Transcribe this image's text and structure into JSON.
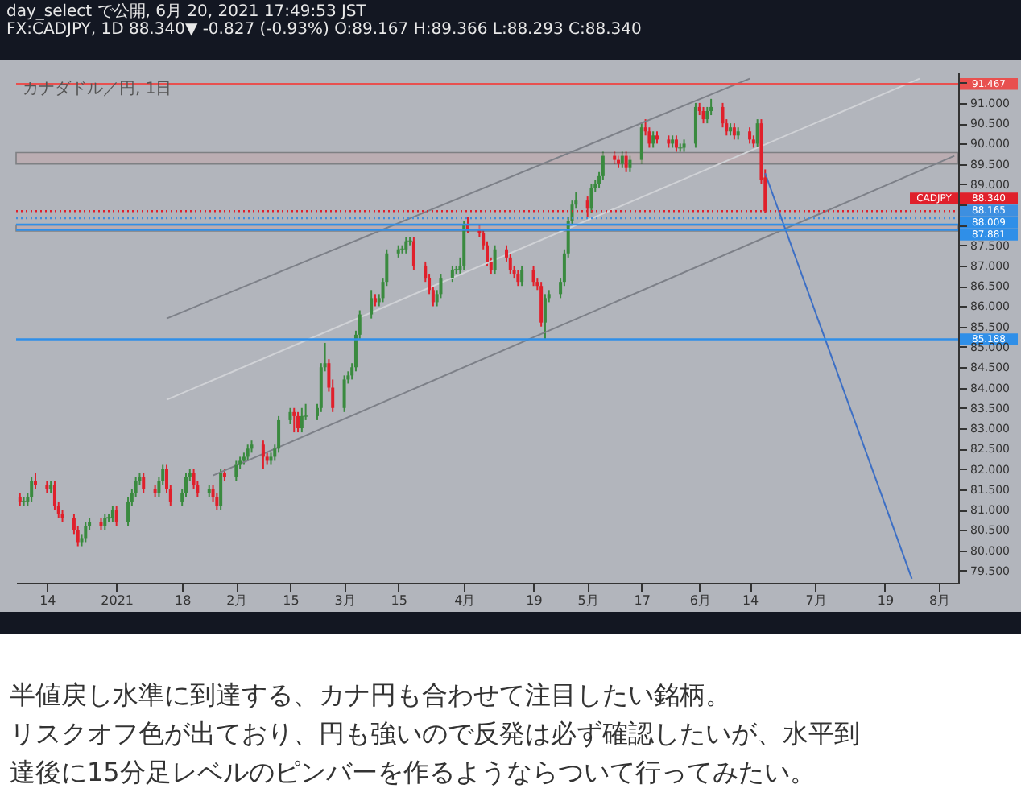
{
  "chart_data": {
    "type": "candlestick",
    "title": "カナダドル／円, 1日",
    "annotations": [
      "day_select で公開, 6月 20, 2021 17:49:53 JST",
      "FX:CADJPY, 1D 88.340▼ -0.827 (-0.93%) O:89.167 H:89.366 L:88.293 C:88.340",
      "半値戻し水準に到達する、カナ円も合わせて注目したい銘柄。",
      "リスクオフ色が出ており、円も強いので反発は必ず確認したいが、水平到",
      "達後に15分足レベルのピンバーを作るようならついて行ってみたい。",
      "CADJPY"
    ],
    "x": [
      "2020-12-07",
      "2020-12-08",
      "2020-12-09",
      "2020-12-10",
      "2020-12-11",
      "2020-12-14",
      "2020-12-15",
      "2020-12-16",
      "2020-12-17",
      "2020-12-18",
      "2020-12-21",
      "2020-12-22",
      "2020-12-23",
      "2020-12-24",
      "2020-12-25",
      "2020-12-28",
      "2020-12-29",
      "2020-12-30",
      "2020-12-31",
      "2021-01-01",
      "2021-01-04",
      "2021-01-05",
      "2021-01-06",
      "2021-01-07",
      "2021-01-08",
      "2021-01-11",
      "2021-01-12",
      "2021-01-13",
      "2021-01-14",
      "2021-01-15",
      "2021-01-18",
      "2021-01-19",
      "2021-01-20",
      "2021-01-21",
      "2021-01-22",
      "2021-01-25",
      "2021-01-26",
      "2021-01-27",
      "2021-01-28",
      "2021-01-29",
      "2021-02-01",
      "2021-02-02",
      "2021-02-03",
      "2021-02-04",
      "2021-02-05",
      "2021-02-08",
      "2021-02-09",
      "2021-02-10",
      "2021-02-11",
      "2021-02-12",
      "2021-02-15",
      "2021-02-16",
      "2021-02-17",
      "2021-02-18",
      "2021-02-19",
      "2021-02-22",
      "2021-02-23",
      "2021-02-24",
      "2021-02-25",
      "2021-02-26",
      "2021-03-01",
      "2021-03-02",
      "2021-03-03",
      "2021-03-04",
      "2021-03-05",
      "2021-03-08",
      "2021-03-09",
      "2021-03-10",
      "2021-03-11",
      "2021-03-12",
      "2021-03-15",
      "2021-03-16",
      "2021-03-17",
      "2021-03-18",
      "2021-03-19",
      "2021-03-22",
      "2021-03-23",
      "2021-03-24",
      "2021-03-25",
      "2021-03-26",
      "2021-03-29",
      "2021-03-30",
      "2021-03-31",
      "2021-04-01",
      "2021-04-02",
      "2021-04-05",
      "2021-04-06",
      "2021-04-07",
      "2021-04-08",
      "2021-04-09",
      "2021-04-12",
      "2021-04-13",
      "2021-04-14",
      "2021-04-15",
      "2021-04-16",
      "2021-04-19",
      "2021-04-20",
      "2021-04-21",
      "2021-04-22",
      "2021-04-23",
      "2021-04-26",
      "2021-04-27",
      "2021-04-28",
      "2021-04-29",
      "2021-04-30",
      "2021-05-03",
      "2021-05-04",
      "2021-05-05",
      "2021-05-06",
      "2021-05-07",
      "2021-05-10",
      "2021-05-11",
      "2021-05-12",
      "2021-05-13",
      "2021-05-14",
      "2021-05-17",
      "2021-05-18",
      "2021-05-19",
      "2021-05-20",
      "2021-05-21",
      "2021-05-24",
      "2021-05-25",
      "2021-05-26",
      "2021-05-27",
      "2021-05-28",
      "2021-05-31",
      "2021-06-01",
      "2021-06-02",
      "2021-06-03",
      "2021-06-04",
      "2021-06-07",
      "2021-06-08",
      "2021-06-09",
      "2021-06-10",
      "2021-06-11",
      "2021-06-14",
      "2021-06-15",
      "2021-06-16",
      "2021-06-17",
      "2021-06-18"
    ],
    "ohlc": [
      [
        81.3,
        81.4,
        81.1,
        81.2
      ],
      [
        81.2,
        81.3,
        81.1,
        81.2
      ],
      [
        81.2,
        81.4,
        81.1,
        81.3
      ],
      [
        81.3,
        81.8,
        81.2,
        81.7
      ],
      [
        81.7,
        81.9,
        81.5,
        81.6
      ],
      [
        81.6,
        81.7,
        81.4,
        81.5
      ],
      [
        81.5,
        81.7,
        81.4,
        81.6
      ],
      [
        81.6,
        81.7,
        81.0,
        81.1
      ],
      [
        81.1,
        81.2,
        80.8,
        80.9
      ],
      [
        80.9,
        81.0,
        80.7,
        80.8
      ],
      [
        80.8,
        80.9,
        80.4,
        80.5
      ],
      [
        80.5,
        80.6,
        80.1,
        80.2
      ],
      [
        80.2,
        80.4,
        80.1,
        80.3
      ],
      [
        80.3,
        80.7,
        80.2,
        80.6
      ],
      [
        80.6,
        80.8,
        80.5,
        80.7
      ],
      [
        80.7,
        80.8,
        80.5,
        80.6
      ],
      [
        80.6,
        80.9,
        80.5,
        80.8
      ],
      [
        80.8,
        80.9,
        80.7,
        80.8
      ],
      [
        80.8,
        81.1,
        80.7,
        81.0
      ],
      [
        81.0,
        81.1,
        80.6,
        80.7
      ],
      [
        80.7,
        81.3,
        80.6,
        81.2
      ],
      [
        81.2,
        81.5,
        81.1,
        81.4
      ],
      [
        81.4,
        81.8,
        81.3,
        81.7
      ],
      [
        81.7,
        81.9,
        81.6,
        81.8
      ],
      [
        81.8,
        81.9,
        81.4,
        81.5
      ],
      [
        81.5,
        81.6,
        81.3,
        81.4
      ],
      [
        81.4,
        81.8,
        81.3,
        81.7
      ],
      [
        81.7,
        82.1,
        81.6,
        82.0
      ],
      [
        82.0,
        82.1,
        81.4,
        81.5
      ],
      [
        81.5,
        81.6,
        81.1,
        81.2
      ],
      [
        81.2,
        81.5,
        81.1,
        81.4
      ],
      [
        81.4,
        81.9,
        81.3,
        81.8
      ],
      [
        81.8,
        82.0,
        81.7,
        81.9
      ],
      [
        81.9,
        82.0,
        81.5,
        81.6
      ],
      [
        81.6,
        81.7,
        81.3,
        81.4
      ],
      [
        81.4,
        81.6,
        81.3,
        81.5
      ],
      [
        81.5,
        81.6,
        81.2,
        81.3
      ],
      [
        81.3,
        81.4,
        81.0,
        81.1
      ],
      [
        81.1,
        82.0,
        81.0,
        81.9
      ],
      [
        81.9,
        82.0,
        81.7,
        81.8
      ],
      [
        81.8,
        82.2,
        81.7,
        82.1
      ],
      [
        82.1,
        82.3,
        82.0,
        82.2
      ],
      [
        82.2,
        82.4,
        82.1,
        82.3
      ],
      [
        82.3,
        82.6,
        82.2,
        82.5
      ],
      [
        82.5,
        82.7,
        82.4,
        82.6
      ],
      [
        82.6,
        82.7,
        82.0,
        82.3
      ],
      [
        82.3,
        82.4,
        82.1,
        82.2
      ],
      [
        82.2,
        82.4,
        82.1,
        82.3
      ],
      [
        82.3,
        82.6,
        82.2,
        82.5
      ],
      [
        82.5,
        83.3,
        82.4,
        83.2
      ],
      [
        83.2,
        83.5,
        83.1,
        83.4
      ],
      [
        83.4,
        83.5,
        82.9,
        83.3
      ],
      [
        83.3,
        83.4,
        82.9,
        83.0
      ],
      [
        83.0,
        83.5,
        82.9,
        83.3
      ],
      [
        83.3,
        83.6,
        83.2,
        83.3
      ],
      [
        83.3,
        83.6,
        83.2,
        83.5
      ],
      [
        83.5,
        84.6,
        83.4,
        84.5
      ],
      [
        84.5,
        85.1,
        84.4,
        84.6
      ],
      [
        84.6,
        84.7,
        83.9,
        84.0
      ],
      [
        84.0,
        84.2,
        83.4,
        83.5
      ],
      [
        83.5,
        84.3,
        83.4,
        84.2
      ],
      [
        84.2,
        84.4,
        84.1,
        84.3
      ],
      [
        84.3,
        84.6,
        84.2,
        84.5
      ],
      [
        84.5,
        85.4,
        84.4,
        85.3
      ],
      [
        85.3,
        85.9,
        85.2,
        85.8
      ],
      [
        85.8,
        86.4,
        85.7,
        86.2
      ],
      [
        86.2,
        86.3,
        86.0,
        86.1
      ],
      [
        86.1,
        86.3,
        86.0,
        86.2
      ],
      [
        86.2,
        86.7,
        86.1,
        86.6
      ],
      [
        86.6,
        87.4,
        86.5,
        87.3
      ],
      [
        87.3,
        87.5,
        87.2,
        87.4
      ],
      [
        87.4,
        87.5,
        87.3,
        87.4
      ],
      [
        87.4,
        87.7,
        87.3,
        87.6
      ],
      [
        87.6,
        87.7,
        87.5,
        87.6
      ],
      [
        87.6,
        87.7,
        86.9,
        87.0
      ],
      [
        87.0,
        87.1,
        86.6,
        86.7
      ],
      [
        86.7,
        86.8,
        86.3,
        86.4
      ],
      [
        86.4,
        86.5,
        86.0,
        86.1
      ],
      [
        86.1,
        86.4,
        86.0,
        86.3
      ],
      [
        86.3,
        86.8,
        86.2,
        86.7
      ],
      [
        86.7,
        87.0,
        86.6,
        86.9
      ],
      [
        86.9,
        87.0,
        86.8,
        86.9
      ],
      [
        86.9,
        87.2,
        86.8,
        87.0
      ],
      [
        87.0,
        88.1,
        86.9,
        88.0
      ],
      [
        88.0,
        88.2,
        87.8,
        87.9
      ],
      [
        87.9,
        88.0,
        87.7,
        87.8
      ],
      [
        87.8,
        87.9,
        87.4,
        87.5
      ],
      [
        87.5,
        87.6,
        87.0,
        87.1
      ],
      [
        87.1,
        87.2,
        86.8,
        86.9
      ],
      [
        86.9,
        87.5,
        86.8,
        87.4
      ],
      [
        87.4,
        87.5,
        87.1,
        87.2
      ],
      [
        87.2,
        87.3,
        86.8,
        86.9
      ],
      [
        86.9,
        87.0,
        86.7,
        86.8
      ],
      [
        86.8,
        86.9,
        86.5,
        86.6
      ],
      [
        86.6,
        87.0,
        86.5,
        86.9
      ],
      [
        86.9,
        87.0,
        86.5,
        86.6
      ],
      [
        86.6,
        86.7,
        86.4,
        86.5
      ],
      [
        86.5,
        86.6,
        85.5,
        85.6
      ],
      [
        85.6,
        86.3,
        85.2,
        86.2
      ],
      [
        86.2,
        86.4,
        86.1,
        86.3
      ],
      [
        86.3,
        86.7,
        86.2,
        86.6
      ],
      [
        86.6,
        87.4,
        86.5,
        87.3
      ],
      [
        87.3,
        88.2,
        87.2,
        88.1
      ],
      [
        88.1,
        88.6,
        88.0,
        88.5
      ],
      [
        88.5,
        88.8,
        88.4,
        88.6
      ],
      [
        88.6,
        88.7,
        88.2,
        88.4
      ],
      [
        88.4,
        89.0,
        88.3,
        88.9
      ],
      [
        88.9,
        89.1,
        88.8,
        89.0
      ],
      [
        89.0,
        89.3,
        88.9,
        89.2
      ],
      [
        89.2,
        89.8,
        89.1,
        89.7
      ],
      [
        89.7,
        89.8,
        89.5,
        89.6
      ],
      [
        89.6,
        89.7,
        89.4,
        89.5
      ],
      [
        89.5,
        89.8,
        89.4,
        89.7
      ],
      [
        89.7,
        89.8,
        89.3,
        89.4
      ],
      [
        89.4,
        89.7,
        89.3,
        89.6
      ],
      [
        89.6,
        90.5,
        89.5,
        90.4
      ],
      [
        90.4,
        90.6,
        90.2,
        90.3
      ],
      [
        90.3,
        90.4,
        89.9,
        90.0
      ],
      [
        90.0,
        90.3,
        89.9,
        90.2
      ],
      [
        90.2,
        90.3,
        90.0,
        90.1
      ],
      [
        90.1,
        90.2,
        89.9,
        90.0
      ],
      [
        90.0,
        90.2,
        89.9,
        90.1
      ],
      [
        90.1,
        90.2,
        89.8,
        89.9
      ],
      [
        89.9,
        90.0,
        89.8,
        89.9
      ],
      [
        89.9,
        90.1,
        89.8,
        90.0
      ],
      [
        90.0,
        91.0,
        89.9,
        90.9
      ],
      [
        90.9,
        91.0,
        90.7,
        90.8
      ],
      [
        90.8,
        90.9,
        90.5,
        90.6
      ],
      [
        90.6,
        90.9,
        90.5,
        90.8
      ],
      [
        90.8,
        91.1,
        90.7,
        90.9
      ],
      [
        90.9,
        91.0,
        90.4,
        90.5
      ],
      [
        90.5,
        90.6,
        90.2,
        90.3
      ],
      [
        90.3,
        90.5,
        90.2,
        90.4
      ],
      [
        90.4,
        90.5,
        90.1,
        90.2
      ],
      [
        90.2,
        90.4,
        90.1,
        90.3
      ],
      [
        90.3,
        90.4,
        90.0,
        90.1
      ],
      [
        90.1,
        90.2,
        89.9,
        90.0
      ],
      [
        90.0,
        90.6,
        89.9,
        90.5
      ],
      [
        90.5,
        90.6,
        89.0,
        89.1
      ],
      [
        89.167,
        89.366,
        88.293,
        88.34
      ]
    ],
    "series": [
      {
        "type": "line",
        "x": [
          "2021-01-14",
          "2021-06-14"
        ],
        "values": [
          85.7,
          91.6
        ],
        "color": "#7d8088"
      },
      {
        "type": "line",
        "x": [
          "2021-01-14",
          "2021-07-28"
        ],
        "values": [
          83.7,
          91.6
        ],
        "color": "#d0d2d6"
      },
      {
        "type": "line",
        "x": [
          "2021-01-26",
          "2021-08-06"
        ],
        "values": [
          81.84,
          89.7
        ],
        "color": "#7d8088"
      },
      {
        "type": "line",
        "x": [
          "2021-06-18",
          "2021-07-26"
        ],
        "values": [
          89.27,
          79.3
        ],
        "color": "#3d6fc4"
      }
    ],
    "xlim": [
      "2020-12-06",
      "2021-08-07"
    ],
    "xticks": [
      {
        "value": "2020-12-14",
        "label": "14"
      },
      {
        "value": "2021-01-01",
        "label": "2021"
      },
      {
        "value": "2021-01-18",
        "label": "18"
      },
      {
        "value": "2021-02-01",
        "label": "2月"
      },
      {
        "value": "2021-02-15",
        "label": "15"
      },
      {
        "value": "2021-03-01",
        "label": "3月"
      },
      {
        "value": "2021-03-15",
        "label": "15"
      },
      {
        "value": "2021-04-01",
        "label": "4月"
      },
      {
        "value": "2021-04-19",
        "label": "19"
      },
      {
        "value": "2021-05-03",
        "label": "5月"
      },
      {
        "value": "2021-05-17",
        "label": "17"
      },
      {
        "value": "2021-06-01",
        "label": "6月"
      },
      {
        "value": "2021-06-14",
        "label": "14"
      },
      {
        "value": "2021-07-01",
        "label": "7月"
      },
      {
        "value": "2021-07-19",
        "label": "19"
      },
      {
        "value": "2021-08-02",
        "label": "8月"
      }
    ],
    "ylim": [
      79.2,
      91.75
    ],
    "yticks": [
      {
        "value": 79.5,
        "label": "79.500"
      },
      {
        "value": 80,
        "label": "80.000"
      },
      {
        "value": 80.5,
        "label": "80.500"
      },
      {
        "value": 81,
        "label": "81.000"
      },
      {
        "value": 81.5,
        "label": "81.500"
      },
      {
        "value": 82,
        "label": "82.000"
      },
      {
        "value": 82.5,
        "label": "82.500"
      },
      {
        "value": 83,
        "label": "83.000"
      },
      {
        "value": 83.5,
        "label": "83.500"
      },
      {
        "value": 84,
        "label": "84.000"
      },
      {
        "value": 84.5,
        "label": "84.500"
      },
      {
        "value": 85,
        "label": "85.000"
      },
      {
        "value": 85.5,
        "label": "85.500"
      },
      {
        "value": 86,
        "label": "86.000"
      },
      {
        "value": 86.5,
        "label": "86.500"
      },
      {
        "value": 87,
        "label": "87.000"
      },
      {
        "value": 87.5,
        "label": "87.500"
      },
      {
        "value": 88,
        "label": null
      },
      {
        "value": 88.5,
        "label": null
      },
      {
        "value": 89,
        "label": "89.000"
      },
      {
        "value": 89.5,
        "label": "89.500"
      },
      {
        "value": 90,
        "label": "90.000"
      },
      {
        "value": 90.5,
        "label": "90.500"
      },
      {
        "value": 91,
        "label": "91.000"
      },
      {
        "value": 91.5,
        "label": null
      }
    ],
    "ref_lines": [
      {
        "axis": "y",
        "value": 88.34,
        "label": "88.340",
        "color": "#e0202b",
        "line_style": "dotted"
      },
      {
        "axis": "y",
        "value": 91.467,
        "label": "91.467",
        "color": "#e8504f"
      },
      {
        "axis": "y",
        "value": 88.165,
        "label": "88.165",
        "color": "#3d8fe0",
        "line_style": "dotted"
      },
      {
        "axis": "y",
        "value": 88.009,
        "label": "88.009",
        "color": "#2f8fe8"
      },
      {
        "axis": "y",
        "value": 87.881,
        "label": "87.881",
        "color": "#2f8fe8"
      },
      {
        "axis": "y",
        "value": 85.188,
        "label": "85.188",
        "color": "#2f8fe8"
      }
    ],
    "bands": [
      {
        "axis": "y",
        "from": 89.5,
        "to": 89.78,
        "color": "#c4a7ab"
      },
      {
        "axis": "y",
        "from": 87.85,
        "to": 88.0,
        "color": "#c4a7ab"
      }
    ],
    "grid": false
  }
}
